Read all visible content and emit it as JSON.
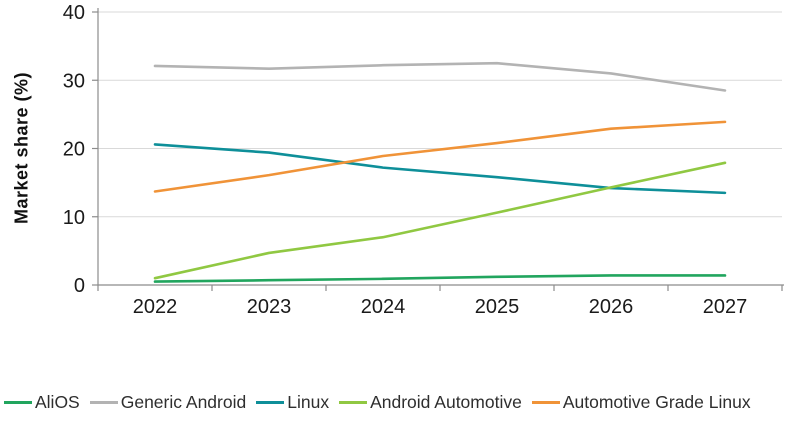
{
  "chart_data": {
    "type": "line",
    "title": "",
    "xlabel": "",
    "ylabel": "Market share (%)",
    "categories": [
      "2022",
      "2023",
      "2024",
      "2025",
      "2026",
      "2027"
    ],
    "ylim": [
      0,
      40
    ],
    "yticks": [
      0,
      10,
      20,
      30,
      40
    ],
    "grid": true,
    "legend_position": "bottom",
    "colors": {
      "axis": "#8c8c8c",
      "gridline": "#d9d9d9",
      "tick_label": "#1a1a1a"
    },
    "series": [
      {
        "name": "AliOS",
        "color": "#21a55e",
        "values": [
          0.5,
          0.7,
          0.9,
          1.2,
          1.4,
          1.4
        ]
      },
      {
        "name": "Generic Android",
        "color": "#b3b3b3",
        "values": [
          32.1,
          31.7,
          32.2,
          32.5,
          31.0,
          28.5
        ]
      },
      {
        "name": "Linux",
        "color": "#0e8f99",
        "values": [
          20.6,
          19.4,
          17.2,
          15.8,
          14.2,
          13.5
        ]
      },
      {
        "name": "Android Automotive",
        "color": "#90c842",
        "values": [
          1.0,
          4.7,
          7.0,
          10.6,
          14.3,
          17.9
        ]
      },
      {
        "name": "Automotive Grade Linux",
        "color": "#f09338",
        "values": [
          13.7,
          16.1,
          18.9,
          20.8,
          22.9,
          23.9
        ]
      }
    ]
  }
}
